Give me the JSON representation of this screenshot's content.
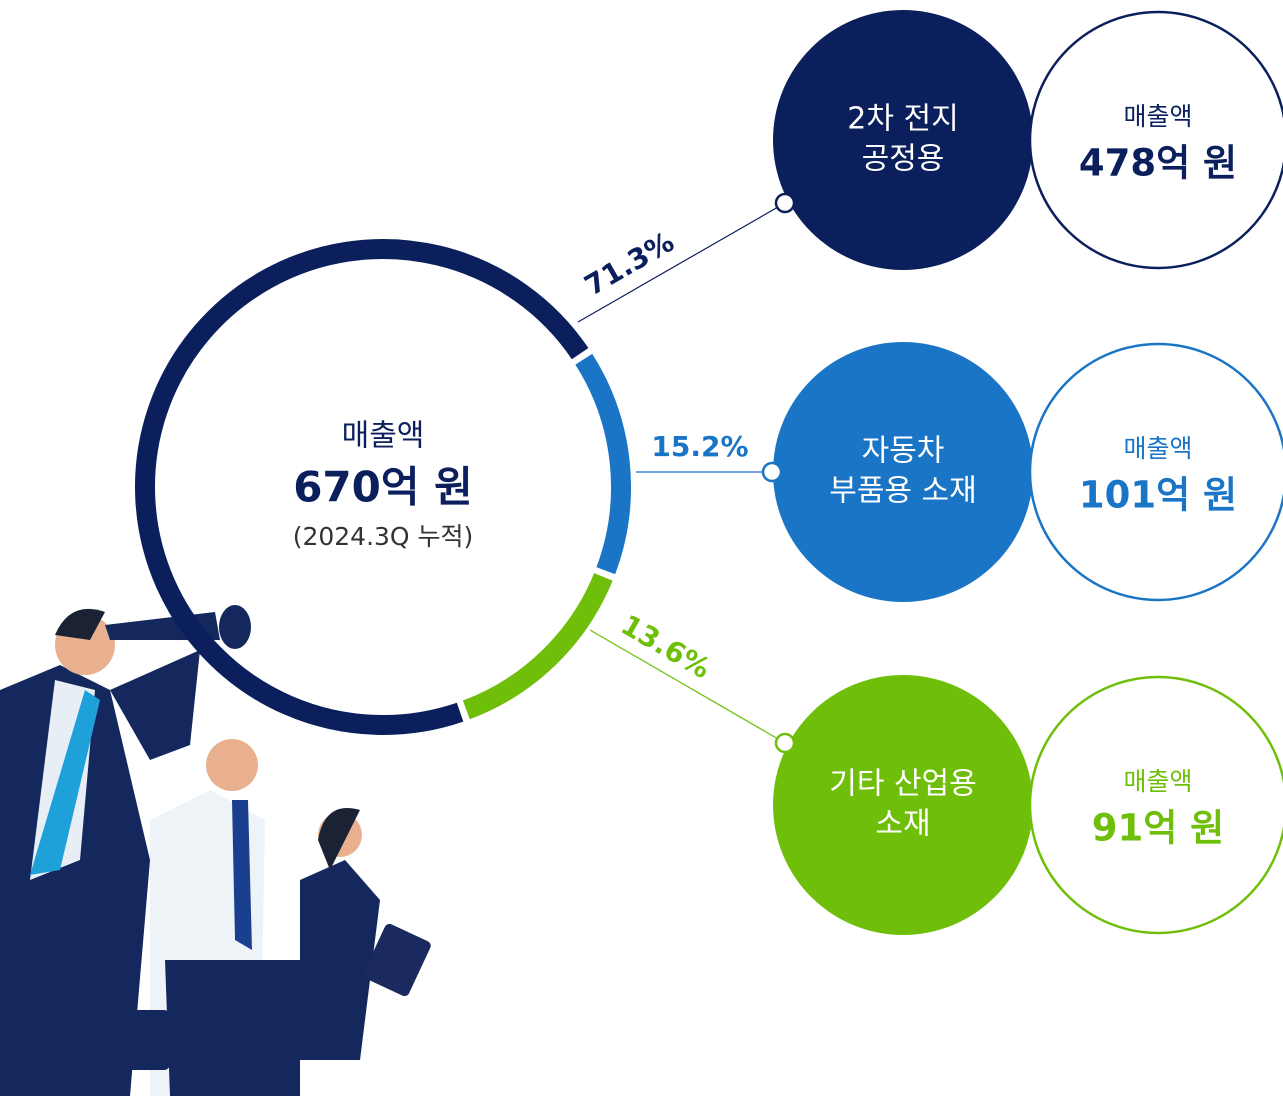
{
  "chart_data": {
    "type": "donut",
    "center_label": "매출액",
    "center_value": "670억 원",
    "center_note": "(2024.3Q 누적)",
    "categories": [
      [
        "2차 전지",
        "공정용"
      ],
      [
        "자동차",
        "부품용 소재"
      ],
      [
        "기타 산업용",
        "소재"
      ]
    ],
    "values": [
      71.3,
      15.2,
      13.6
    ],
    "value_labels": [
      "71.3%",
      "15.2%",
      "13.6%"
    ],
    "colors": [
      "#0b1f5c",
      "#1a75c7",
      "#6fbf0a"
    ],
    "revenue_titles": [
      "매출액",
      "매출액",
      "매출액"
    ],
    "revenue_labels": [
      "478억 원",
      "101억 원",
      "91억 원"
    ]
  }
}
